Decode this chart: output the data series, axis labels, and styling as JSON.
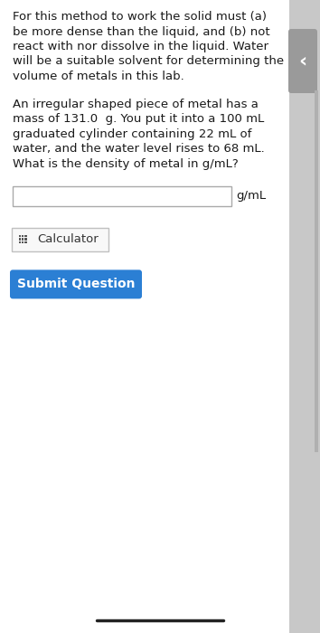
{
  "bg_color": "#f0f0f0",
  "main_bg": "#ffffff",
  "p1_lines": [
    "For this method to work the solid must (a)",
    "be more dense than the liquid, and (b) not",
    "react with nor dissolve in the liquid. Water",
    "will be a suitable solvent for determining the",
    "volume of metals in this lab."
  ],
  "p2_lines": [
    "An irregular shaped piece of metal has a",
    "mass of 131.0  g. You put it into a 100 mL",
    "graduated cylinder containing 22 mL of",
    "water, and the water level rises to 68 mL.",
    "What is the density of metal in g/mL?"
  ],
  "input_label": "g/mL",
  "calc_label": "Calculator",
  "submit_label": "Submit Question",
  "submit_color": "#2b7fd4",
  "submit_text_color": "#ffffff",
  "calc_border_color": "#c0c0c0",
  "calc_bg_color": "#f8f8f8",
  "calc_text_color": "#333333",
  "input_border_color": "#aaaaaa",
  "text_color": "#1a1a1a",
  "font_size_body": 9.5,
  "sidebar_color": "#c8c8c8",
  "arrow_bg_color": "#9a9a9a",
  "arrow_label": "‹",
  "scrollbar_color": "#b0b0b0",
  "bottom_line_color": "#222222",
  "icon_color": "#555555"
}
